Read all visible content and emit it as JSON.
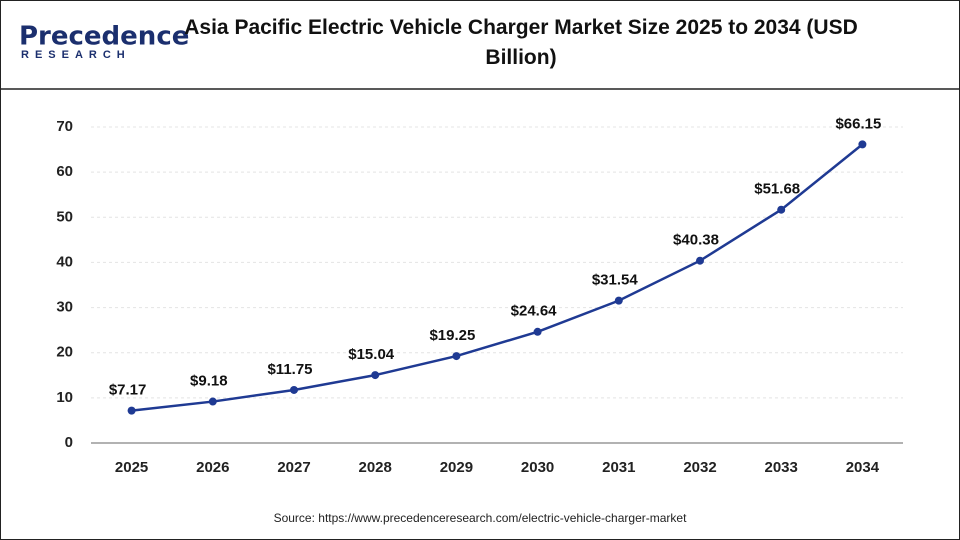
{
  "logo": {
    "name": "Precedence",
    "tagline": "RESEARCH"
  },
  "chart_data": {
    "type": "line",
    "title": "Asia Pacific Electric Vehicle Charger Market Size 2025 to 2034 (USD Billion)",
    "categories": [
      "2025",
      "2026",
      "2027",
      "2028",
      "2029",
      "2030",
      "2031",
      "2032",
      "2033",
      "2034"
    ],
    "series": [
      {
        "name": "Market Size",
        "color": "#1f3a93",
        "values": [
          7.17,
          9.18,
          11.75,
          15.04,
          19.25,
          24.64,
          31.54,
          40.38,
          51.68,
          66.15
        ],
        "value_labels": [
          "$7.17",
          "$9.18",
          "$11.75",
          "$15.04",
          "$19.25",
          "$24.64",
          "$31.54",
          "$40.38",
          "$51.68",
          "$66.15"
        ]
      }
    ],
    "ylim": [
      0,
      70
    ],
    "yticks": [
      0,
      10,
      20,
      30,
      40,
      50,
      60,
      70
    ],
    "grid": true,
    "source": "Source:  https://www.precedenceresearch.com/electric-vehicle-charger-market"
  }
}
